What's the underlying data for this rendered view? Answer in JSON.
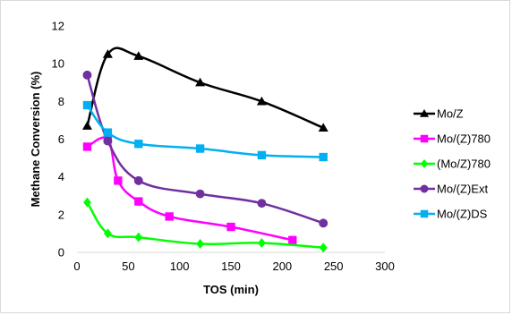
{
  "chart_data": {
    "type": "line",
    "xlabel": "TOS (min)",
    "ylabel": "Methane Conversion (%)",
    "xlim": [
      0,
      300
    ],
    "ylim": [
      0,
      12
    ],
    "xticks": [
      0,
      50,
      100,
      150,
      200,
      250,
      300
    ],
    "yticks": [
      0,
      2,
      4,
      6,
      8,
      10,
      12
    ],
    "grid": false,
    "legend_position": "right",
    "series": [
      {
        "name": "Mo/Z",
        "color": "#000000",
        "marker": "triangle",
        "x": [
          10,
          30,
          60,
          120,
          180,
          240
        ],
        "y": [
          6.7,
          10.5,
          10.4,
          9.0,
          8.0,
          6.6
        ]
      },
      {
        "name": "Mo/(Z)780",
        "color": "#ff00ff",
        "marker": "square",
        "x": [
          10,
          30,
          40,
          60,
          90,
          150,
          210
        ],
        "y": [
          5.6,
          6.0,
          3.8,
          2.7,
          1.9,
          1.35,
          0.65
        ]
      },
      {
        "name": "(Mo/Z)780",
        "color": "#00ff00",
        "marker": "diamond",
        "x": [
          10,
          30,
          60,
          120,
          180,
          240
        ],
        "y": [
          2.65,
          1.0,
          0.8,
          0.45,
          0.5,
          0.25
        ]
      },
      {
        "name": "Mo/(Z)Ext",
        "color": "#7030a0",
        "marker": "circle",
        "x": [
          10,
          30,
          60,
          120,
          180,
          240
        ],
        "y": [
          9.4,
          5.9,
          3.8,
          3.1,
          2.6,
          1.55
        ]
      },
      {
        "name": "Mo/(Z)DS",
        "color": "#00b0f0",
        "marker": "square",
        "x": [
          10,
          30,
          60,
          120,
          180,
          240
        ],
        "y": [
          7.8,
          6.35,
          5.75,
          5.5,
          5.15,
          5.05
        ]
      }
    ]
  }
}
